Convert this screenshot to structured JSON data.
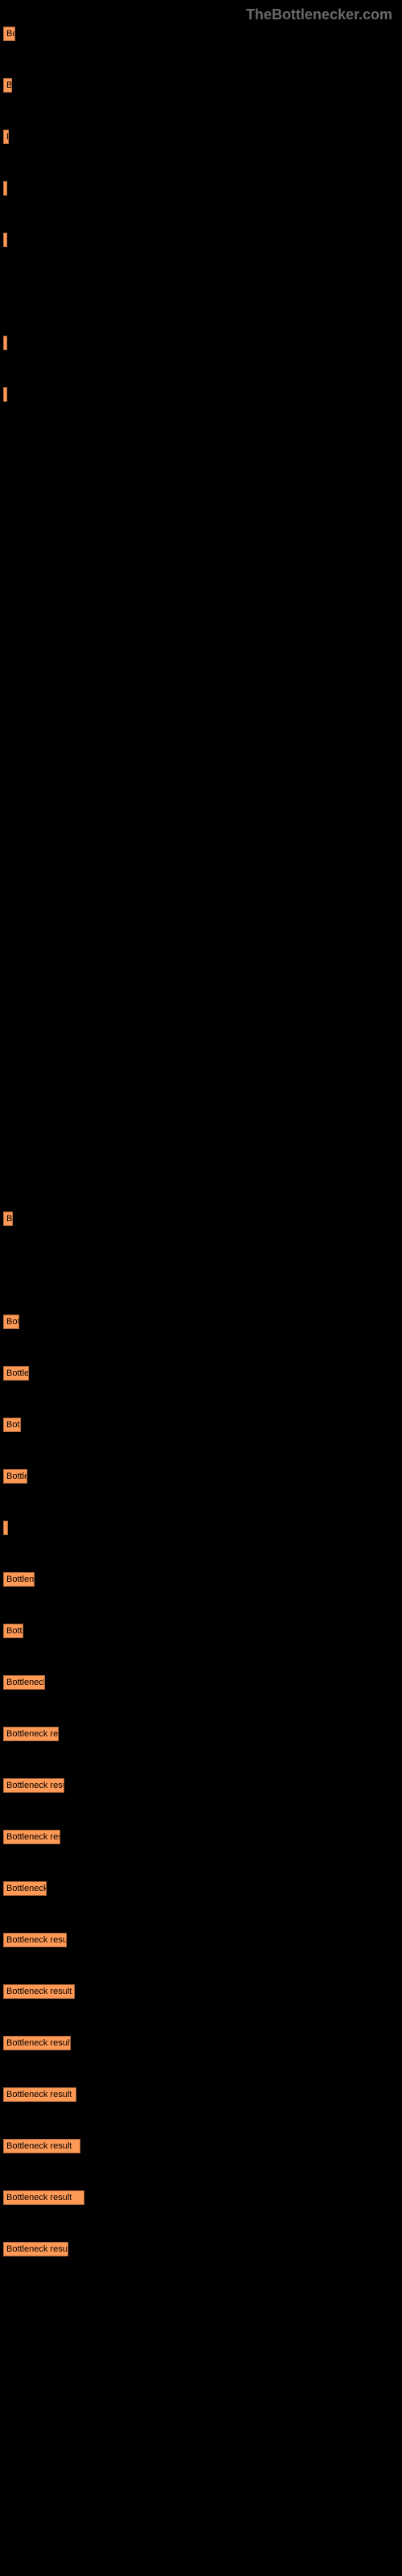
{
  "watermark": "TheBottlenecker.com",
  "watermark_color": "#6a6a6a",
  "chart": {
    "type": "bar",
    "bar_color": "#ff9955",
    "background_color": "#000000",
    "bar_label_prefix": "Bottleneck result",
    "bars": [
      {
        "width_pct": 3.0
      },
      {
        "width_pct": 2.2
      },
      {
        "width_pct": 1.4
      },
      {
        "width_pct": 0.8
      },
      {
        "width_pct": 0.8
      },
      {
        "width_pct": 0.0
      },
      {
        "width_pct": 0.6
      },
      {
        "width_pct": 0.6
      },
      {
        "width_pct": 0.0
      },
      {
        "width_pct": 0.0
      },
      {
        "width_pct": 0.0
      },
      {
        "width_pct": 0.0
      },
      {
        "width_pct": 0.0
      },
      {
        "width_pct": 0.0
      },
      {
        "width_pct": 0.0
      },
      {
        "width_pct": 0.0
      },
      {
        "width_pct": 0.0
      },
      {
        "width_pct": 0.0
      },
      {
        "width_pct": 0.0
      },
      {
        "width_pct": 0.0
      },
      {
        "width_pct": 0.0
      },
      {
        "width_pct": 0.0
      },
      {
        "width_pct": 0.0
      },
      {
        "width_pct": 2.5
      },
      {
        "width_pct": 0.0
      },
      {
        "width_pct": 4.0
      },
      {
        "width_pct": 6.5
      },
      {
        "width_pct": 4.5
      },
      {
        "width_pct": 6.0
      },
      {
        "width_pct": 1.2
      },
      {
        "width_pct": 8.0
      },
      {
        "width_pct": 5.0
      },
      {
        "width_pct": 10.5
      },
      {
        "width_pct": 14.0
      },
      {
        "width_pct": 15.5
      },
      {
        "width_pct": 14.5
      },
      {
        "width_pct": 11.0
      },
      {
        "width_pct": 16.0
      },
      {
        "width_pct": 18.0
      },
      {
        "width_pct": 17.0
      },
      {
        "width_pct": 18.5
      },
      {
        "width_pct": 19.5
      },
      {
        "width_pct": 20.5
      },
      {
        "width_pct": 16.5
      }
    ]
  }
}
